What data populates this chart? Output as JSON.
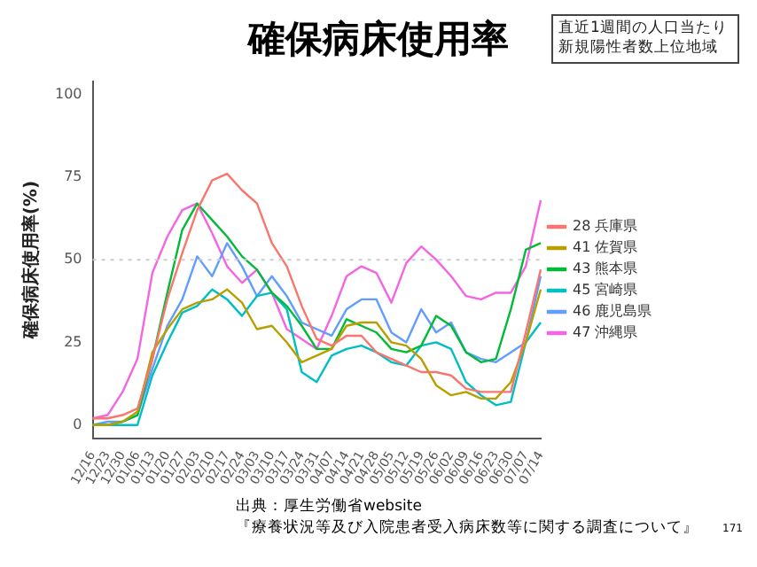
{
  "chart_data": {
    "type": "line",
    "title": "確保病床使用率",
    "categories": [
      "12/16",
      "12/23",
      "12/30",
      "01/06",
      "01/13",
      "01/20",
      "01/27",
      "02/03",
      "02/10",
      "02/17",
      "02/24",
      "03/03",
      "03/10",
      "03/17",
      "03/24",
      "03/31",
      "04/07",
      "04/14",
      "04/21",
      "04/28",
      "05/05",
      "05/12",
      "05/19",
      "05/26",
      "06/02",
      "06/09",
      "06/16",
      "06/23",
      "06/30",
      "07/07",
      "07/14"
    ],
    "ylabel": "確保病床使用率(%)",
    "legend_title": "直近1週間の人口当たり新規陽性者数上位地域",
    "series": [
      {
        "name": "28 兵庫県",
        "color": "#f8766d",
        "values": [
          2,
          2,
          3,
          5,
          20,
          38,
          52,
          65,
          74,
          76,
          71,
          67,
          55,
          48,
          36,
          26,
          24,
          27,
          27,
          22,
          20,
          18,
          16,
          16,
          15,
          11,
          10,
          10,
          10,
          28,
          47
        ]
      },
      {
        "name": "41 佐賀県",
        "color": "#b79f00",
        "values": [
          0,
          0,
          1,
          4,
          22,
          29,
          35,
          37,
          38,
          41,
          37,
          29,
          30,
          25,
          19,
          21,
          23,
          30,
          31,
          31,
          25,
          24,
          20,
          12,
          9,
          10,
          8,
          8,
          13,
          25,
          41
        ]
      },
      {
        "name": "43 熊本県",
        "color": "#00ba38",
        "values": [
          0,
          0,
          1,
          3,
          20,
          40,
          59,
          67,
          62,
          57,
          51,
          47,
          40,
          36,
          30,
          23,
          23,
          32,
          30,
          28,
          23,
          22,
          24,
          33,
          30,
          22,
          19,
          20,
          35,
          53,
          55
        ]
      },
      {
        "name": "45 宮崎県",
        "color": "#00bfc4",
        "values": [
          0,
          0,
          0,
          0,
          15,
          25,
          34,
          36,
          41,
          38,
          33,
          39,
          40,
          35,
          16,
          13,
          21,
          23,
          24,
          22,
          19,
          18,
          24,
          25,
          23,
          13,
          9,
          6,
          7,
          25,
          31
        ]
      },
      {
        "name": "46 鹿児島県",
        "color": "#619cff",
        "values": [
          0,
          1,
          1,
          3,
          17,
          30,
          38,
          51,
          45,
          55,
          48,
          39,
          45,
          39,
          31,
          29,
          27,
          35,
          38,
          38,
          28,
          25,
          35,
          28,
          31,
          22,
          20,
          19,
          22,
          25,
          45
        ]
      },
      {
        "name": "47 沖縄県",
        "color": "#f564e3",
        "values": [
          2,
          3,
          10,
          20,
          46,
          57,
          65,
          67,
          58,
          48,
          43,
          47,
          40,
          29,
          26,
          23,
          33,
          45,
          48,
          46,
          37,
          49,
          54,
          50,
          45,
          39,
          38,
          40,
          40,
          48,
          68
        ]
      }
    ],
    "ylim": [
      -4,
      104
    ],
    "yticks": [
      0,
      25,
      50,
      75,
      100
    ],
    "ref_lines": [
      {
        "axis": "y",
        "value": 50,
        "color": "#cccccc",
        "line_style": "dotted"
      }
    ],
    "grid": false,
    "legend": "right",
    "marker": "none",
    "line_style": "solid",
    "annotations": [
      "出典：厚生労働省website",
      "『療養状況等及び入院患者受入病床数等に関する調査について』",
      "171"
    ]
  }
}
